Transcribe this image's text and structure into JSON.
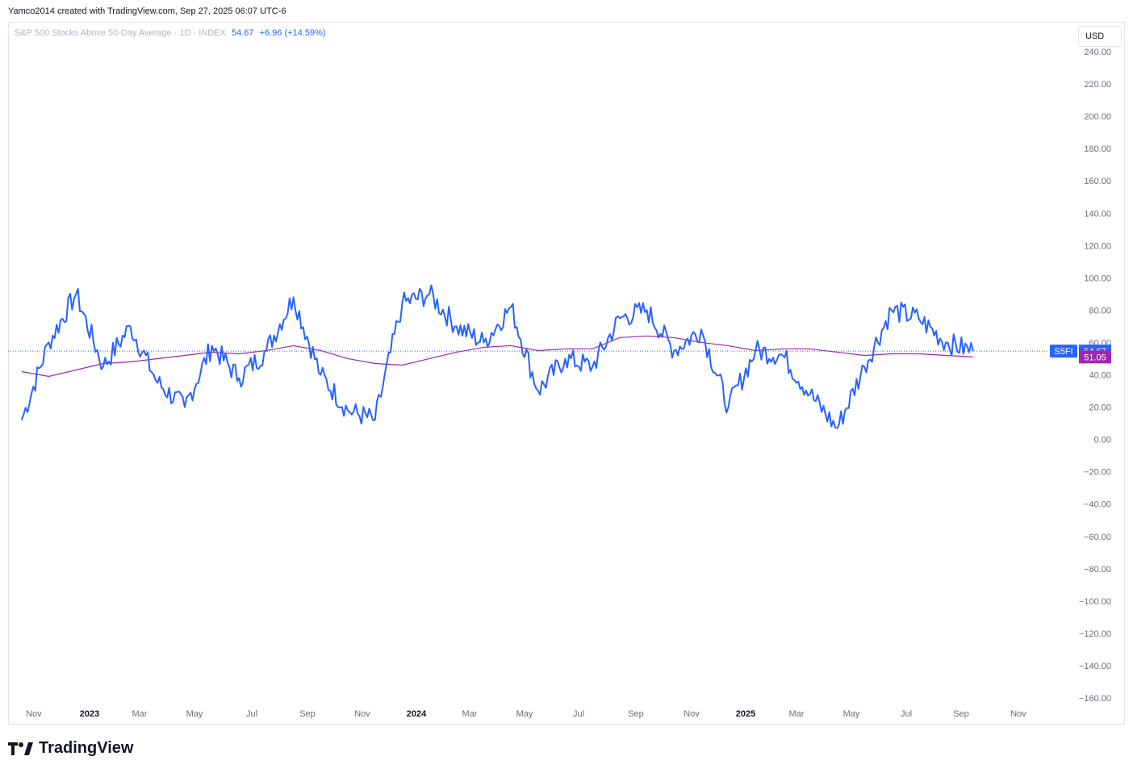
{
  "credit": "Yamco2014 created with TradingView.com, Sep 27, 2025 06:07 UTC-6",
  "legend": {
    "title": "S&P 500 Stocks Above 50-Day Average · 1D · INDEX",
    "last": "54.67",
    "change": "+6.96 (+14.59%)"
  },
  "currency_button": "USD",
  "brand": "TradingView",
  "colors": {
    "price": "#2962ff",
    "ma": "#9c27b0",
    "axis_text": "#6a6d78",
    "border": "#e0e3eb"
  },
  "chart_data": {
    "type": "line",
    "yticks": [
      "240.00",
      "220.00",
      "200.00",
      "180.00",
      "160.00",
      "140.00",
      "120.00",
      "100.00",
      "80.00",
      "60.00",
      "40.00",
      "20.00",
      "0.00",
      "−20.00",
      "−40.00",
      "−60.00",
      "−80.00",
      "−100.00",
      "−120.00",
      "−140.00",
      "−160.00"
    ],
    "ylim": [
      -160,
      240
    ],
    "xticks": [
      {
        "label": "Nov",
        "year": false
      },
      {
        "label": "2023",
        "year": true
      },
      {
        "label": "Mar",
        "year": false
      },
      {
        "label": "May",
        "year": false
      },
      {
        "label": "Jul",
        "year": false
      },
      {
        "label": "Sep",
        "year": false
      },
      {
        "label": "Nov",
        "year": false
      },
      {
        "label": "2024",
        "year": true
      },
      {
        "label": "Mar",
        "year": false
      },
      {
        "label": "May",
        "year": false
      },
      {
        "label": "Jul",
        "year": false
      },
      {
        "label": "Sep",
        "year": false
      },
      {
        "label": "Nov",
        "year": false
      },
      {
        "label": "2025",
        "year": true
      },
      {
        "label": "Mar",
        "year": false
      },
      {
        "label": "May",
        "year": false
      },
      {
        "label": "Jul",
        "year": false
      },
      {
        "label": "Sep",
        "year": false
      },
      {
        "label": "Nov",
        "year": false
      }
    ],
    "series": [
      {
        "name": "S5FI",
        "last_label": "54.67",
        "x": [
          "2022-10",
          "2022-11",
          "2022-12",
          "2023-01",
          "2023-02",
          "2023-03",
          "2023-04",
          "2023-05",
          "2023-06",
          "2023-07",
          "2023-08",
          "2023-09",
          "2023-10",
          "2023-11",
          "2023-12",
          "2024-01",
          "2024-02",
          "2024-03",
          "2024-04",
          "2024-05",
          "2024-06",
          "2024-07",
          "2024-08",
          "2024-09",
          "2024-10",
          "2024-11",
          "2024-12",
          "2025-01",
          "2025-02",
          "2025-03",
          "2025-04",
          "2025-05",
          "2025-06",
          "2025-07",
          "2025-08",
          "2025-09"
        ],
        "values": [
          12,
          60,
          90,
          45,
          70,
          35,
          20,
          58,
          38,
          55,
          88,
          40,
          18,
          12,
          84,
          90,
          70,
          60,
          82,
          30,
          50,
          45,
          75,
          80,
          55,
          68,
          20,
          55,
          52,
          28,
          7,
          45,
          80,
          75,
          60,
          54.67
        ]
      },
      {
        "name": "Moving average",
        "last_label": "51.05",
        "x": [
          "2022-10",
          "2022-11",
          "2022-12",
          "2023-01",
          "2023-02",
          "2023-03",
          "2023-04",
          "2023-05",
          "2023-06",
          "2023-07",
          "2023-08",
          "2023-09",
          "2023-10",
          "2023-11",
          "2023-12",
          "2024-01",
          "2024-02",
          "2024-03",
          "2024-04",
          "2024-05",
          "2024-06",
          "2024-07",
          "2024-08",
          "2024-09",
          "2024-10",
          "2024-11",
          "2024-12",
          "2025-01",
          "2025-02",
          "2025-03",
          "2025-04",
          "2025-05",
          "2025-06",
          "2025-07",
          "2025-08",
          "2025-09"
        ],
        "values": [
          42,
          39,
          43,
          47,
          48,
          50,
          52,
          54,
          53,
          55,
          58,
          55,
          50,
          47,
          46,
          50,
          54,
          57,
          58,
          55,
          56,
          56,
          63,
          64,
          63,
          60,
          58,
          55,
          56,
          56,
          54,
          52,
          53,
          53,
          52,
          51.05
        ]
      }
    ]
  }
}
